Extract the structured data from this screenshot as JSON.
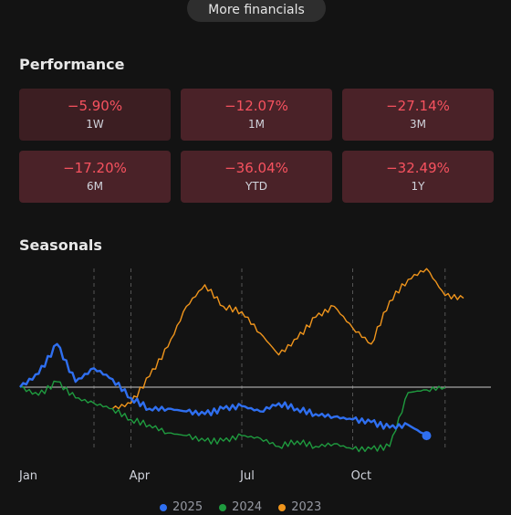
{
  "more_button": "More financials",
  "performance": {
    "title": "Performance",
    "items": [
      {
        "value": "−5.90%",
        "period": "1W"
      },
      {
        "value": "−12.07%",
        "period": "1M"
      },
      {
        "value": "−27.14%",
        "period": "3M"
      },
      {
        "value": "−17.20%",
        "period": "6M"
      },
      {
        "value": "−36.04%",
        "period": "YTD"
      },
      {
        "value": "−32.49%",
        "period": "1Y"
      }
    ]
  },
  "seasonals": {
    "title": "Seasonals",
    "x_labels": [
      "Jan",
      "Apr",
      "Jul",
      "Oct"
    ]
  },
  "colors": {
    "s2025": "#2f6ff0",
    "s2024": "#1f9b3f",
    "s2023": "#f0951c",
    "negative": "#f7525f"
  },
  "chart_data": {
    "type": "line",
    "x_ticks": [
      "Jan",
      "Apr",
      "Jul",
      "Oct"
    ],
    "x": [
      0.0,
      0.5,
      1,
      1.5,
      2,
      2.5,
      3,
      3.5,
      4,
      4.5,
      5,
      5.5,
      6,
      6.5,
      7,
      7.5,
      8,
      8.5,
      9,
      9.5,
      10,
      10.5,
      11,
      11.5,
      12
    ],
    "series": [
      {
        "name": "2025",
        "color": "#2f6ff0",
        "values": [
          0,
          5,
          16,
          2,
          7,
          3,
          -4,
          -8,
          -8,
          -9,
          -10,
          -8,
          -7,
          -9,
          -6,
          -8,
          -10,
          -11,
          -12,
          -13,
          -15,
          -14,
          -18,
          null,
          null
        ]
      },
      {
        "name": "2024",
        "color": "#1f9b3f",
        "values": [
          0,
          -3,
          2,
          -4,
          -6,
          -8,
          -12,
          -14,
          -17,
          -18,
          -20,
          -20,
          -18,
          -19,
          -22,
          -20,
          -22,
          -21,
          -23,
          -23,
          -22,
          -2,
          -1,
          0,
          null
        ]
      },
      {
        "name": "2023",
        "color": "#f0951c",
        "values": [
          null,
          null,
          null,
          null,
          null,
          -8,
          -6,
          4,
          15,
          30,
          38,
          30,
          28,
          20,
          12,
          18,
          26,
          30,
          22,
          16,
          32,
          40,
          44,
          34,
          33
        ]
      }
    ]
  }
}
